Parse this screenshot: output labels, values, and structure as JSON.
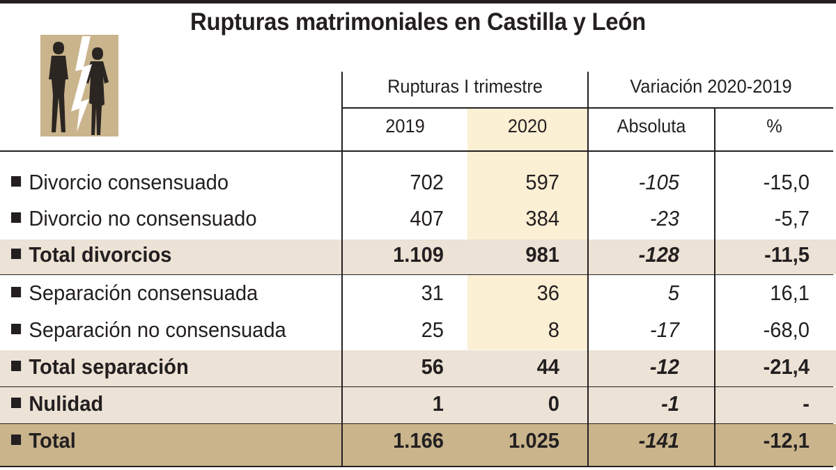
{
  "title": "Rupturas matrimoniales en Castilla y León",
  "chart_data": {
    "type": "table",
    "title": "Rupturas matrimoniales en Castilla y León",
    "group_headers": [
      "Rupturas I trimestre",
      "Variación 2020-2019"
    ],
    "columns": [
      "2019",
      "2020",
      "Absoluta",
      "%"
    ],
    "rows": [
      {
        "label": "Divorcio consensuado",
        "values": [
          "702",
          "597",
          "-105",
          "-15,0"
        ],
        "style": "normal"
      },
      {
        "label": "Divorcio no consensuado",
        "values": [
          "407",
          "384",
          "-23",
          "-5,7"
        ],
        "style": "normal"
      },
      {
        "label": "Total divorcios",
        "values": [
          "1.109",
          "981",
          "-128",
          "-11,5"
        ],
        "style": "subtotal"
      },
      {
        "label": "Separación consensuada",
        "values": [
          "31",
          "36",
          "5",
          "16,1"
        ],
        "style": "normal"
      },
      {
        "label": "Separación no consensuada",
        "values": [
          "25",
          "8",
          "-17",
          "-68,0"
        ],
        "style": "normal"
      },
      {
        "label": "Total separación",
        "values": [
          "56",
          "44",
          "-12",
          "-21,4"
        ],
        "style": "subtotal"
      },
      {
        "label": "Nulidad",
        "values": [
          "1",
          "0",
          "-1",
          "-"
        ],
        "style": "subtotal"
      },
      {
        "label": "Total",
        "values": [
          "1.166",
          "1.025",
          "-141",
          "-12,1"
        ],
        "style": "total"
      }
    ]
  },
  "colors": {
    "subtotal_band": "#ece2d5",
    "total_band": "#c9b48c",
    "highlight_2020": "#fbefd4",
    "text": "#231f20"
  },
  "icons": {
    "logo": "couple-breakup-icon"
  }
}
